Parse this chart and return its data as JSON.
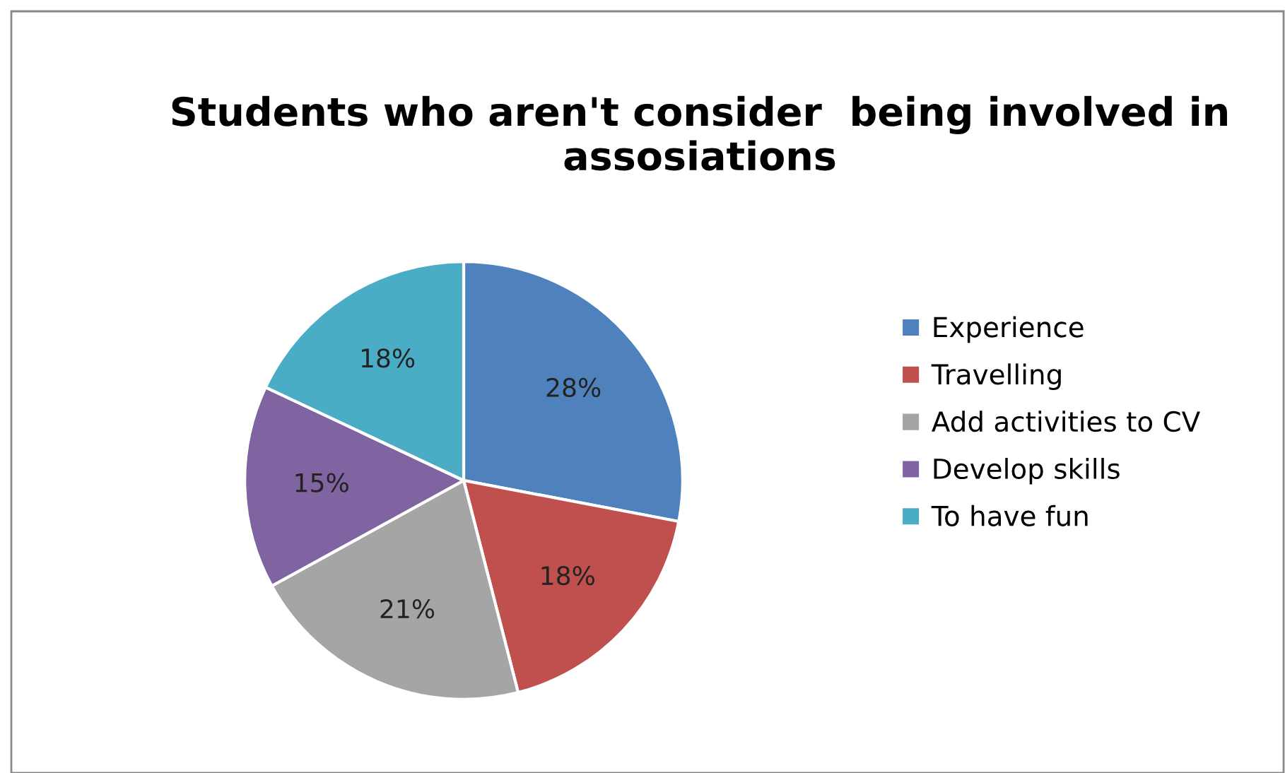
{
  "chart_data": {
    "type": "pie",
    "title": "Students who aren't consider  being involved in assosiations",
    "categories": [
      "Experience",
      "Travelling",
      "Add activities to CV",
      "Develop skills",
      "To have fun"
    ],
    "values": [
      28,
      18,
      21,
      15,
      18
    ],
    "value_labels": [
      "28%",
      "18%",
      "21%",
      "15%",
      "18%"
    ],
    "colors": [
      "#4f81bd",
      "#c0504d",
      "#a5a5a5",
      "#8064a2",
      "#4bacc6"
    ],
    "legend": "right"
  }
}
